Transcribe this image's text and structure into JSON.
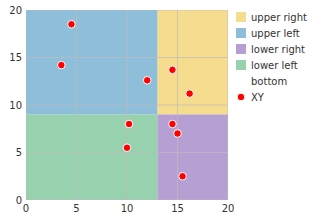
{
  "chart_data": {
    "type": "scatter",
    "series": [
      {
        "name": "upper right",
        "type": "region",
        "x": 13,
        "y": 9,
        "width": 7,
        "height": 11,
        "color": "#f5d67a"
      },
      {
        "name": "upper left",
        "type": "region",
        "x": 0,
        "y": 9,
        "width": 13,
        "height": 11,
        "color": "#7ab3d4"
      },
      {
        "name": "lower right",
        "type": "region",
        "x": 13,
        "y": 0,
        "width": 7,
        "height": 9,
        "color": "#a98fcb"
      },
      {
        "name": "lower left",
        "type": "region",
        "x": 0,
        "y": 0,
        "width": 13,
        "height": 9,
        "color": "#85c9a0"
      },
      {
        "name": "bottom",
        "type": "region"
      },
      {
        "name": "XY",
        "type": "scatter",
        "marker": "circle",
        "color": "#ff0000",
        "x": [
          3.5,
          4.5,
          10.0,
          12.0,
          14.5,
          16.2,
          14.5,
          10.2,
          15.0,
          15.5
        ],
        "values": [
          14.2,
          18.5,
          5.5,
          12.6,
          13.7,
          11.2,
          8.0,
          8.0,
          7.0,
          2.5
        ]
      }
    ],
    "xlim": [
      0,
      20
    ],
    "ylim": [
      0,
      20
    ],
    "xticks": [
      0,
      5,
      10,
      15,
      20
    ],
    "yticks": [
      0,
      5,
      10,
      15,
      20
    ],
    "grid": true,
    "legend": "right"
  }
}
